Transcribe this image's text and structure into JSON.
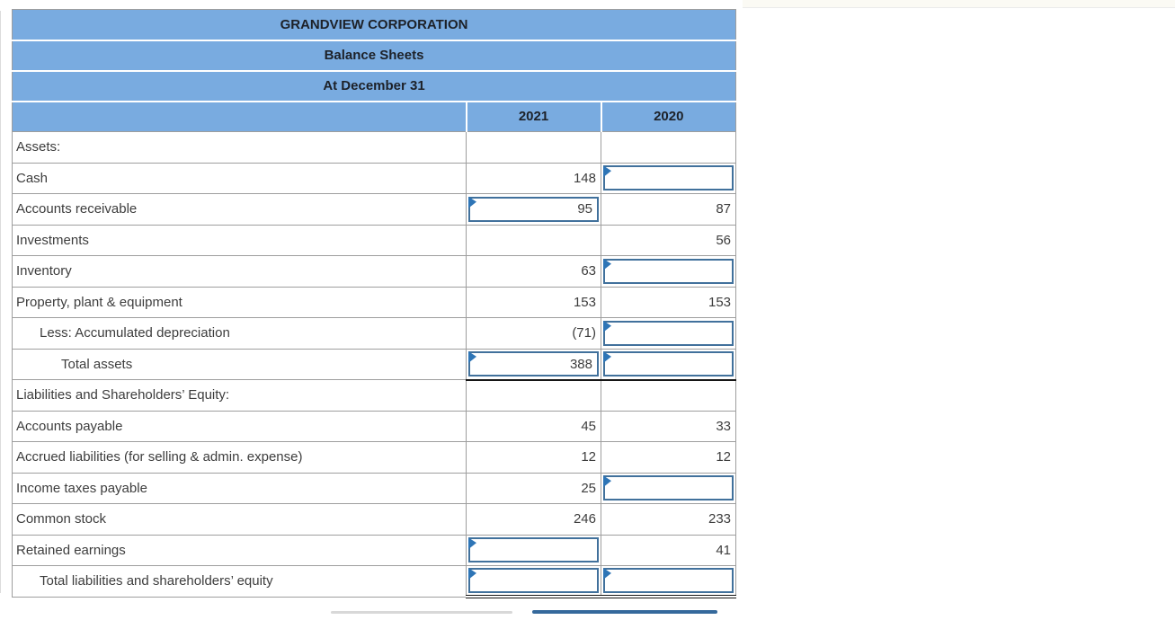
{
  "table": {
    "title": "GRANDVIEW CORPORATION",
    "subtitle": "Balance Sheets",
    "date_line": "At December 31",
    "columns": [
      "2021",
      "2020"
    ],
    "rows": [
      {
        "label": "Assets:",
        "indent": 0,
        "cells": [
          {
            "type": "static",
            "value": ""
          },
          {
            "type": "static",
            "value": ""
          }
        ]
      },
      {
        "label": "Cash",
        "indent": 0,
        "cells": [
          {
            "type": "static",
            "value": "148"
          },
          {
            "type": "input",
            "value": ""
          }
        ]
      },
      {
        "label": "Accounts receivable",
        "indent": 0,
        "cells": [
          {
            "type": "input",
            "value": "95"
          },
          {
            "type": "static",
            "value": "87"
          }
        ]
      },
      {
        "label": "Investments",
        "indent": 0,
        "cells": [
          {
            "type": "static",
            "value": ""
          },
          {
            "type": "static",
            "value": "56"
          }
        ]
      },
      {
        "label": "Inventory",
        "indent": 0,
        "cells": [
          {
            "type": "static",
            "value": "63"
          },
          {
            "type": "input",
            "value": ""
          }
        ]
      },
      {
        "label": "Property, plant & equipment",
        "indent": 0,
        "cells": [
          {
            "type": "static",
            "value": "153"
          },
          {
            "type": "static",
            "value": "153"
          }
        ]
      },
      {
        "label": "Less: Accumulated depreciation",
        "indent": 1,
        "cells": [
          {
            "type": "static",
            "value": "(71)"
          },
          {
            "type": "input",
            "value": ""
          }
        ]
      },
      {
        "label": "Total assets",
        "indent": 2,
        "underline": "single",
        "cells": [
          {
            "type": "input",
            "value": "388"
          },
          {
            "type": "input",
            "value": ""
          }
        ]
      },
      {
        "label": "Liabilities and Shareholders’ Equity:",
        "indent": 0,
        "cells": [
          {
            "type": "static",
            "value": ""
          },
          {
            "type": "static",
            "value": ""
          }
        ]
      },
      {
        "label": "Accounts payable",
        "indent": 0,
        "cells": [
          {
            "type": "static",
            "value": "45"
          },
          {
            "type": "static",
            "value": "33"
          }
        ]
      },
      {
        "label": "Accrued liabilities (for selling & admin. expense)",
        "indent": 0,
        "cells": [
          {
            "type": "static",
            "value": "12"
          },
          {
            "type": "static",
            "value": "12"
          }
        ]
      },
      {
        "label": "Income taxes payable",
        "indent": 0,
        "cells": [
          {
            "type": "static",
            "value": "25"
          },
          {
            "type": "input",
            "value": ""
          }
        ]
      },
      {
        "label": "Common stock",
        "indent": 0,
        "cells": [
          {
            "type": "static",
            "value": "246"
          },
          {
            "type": "static",
            "value": "233"
          }
        ]
      },
      {
        "label": "Retained earnings",
        "indent": 0,
        "cells": [
          {
            "type": "input",
            "value": ""
          },
          {
            "type": "static",
            "value": "41"
          }
        ]
      },
      {
        "label": "Total liabilities and shareholders’ equity",
        "indent": 1,
        "underline": "double",
        "cells": [
          {
            "type": "input",
            "value": ""
          },
          {
            "type": "input",
            "value": ""
          }
        ]
      }
    ]
  },
  "colors": {
    "header_bg": "#79abe0",
    "input_border": "#41719c",
    "flag": "#2e75b6",
    "grid": "#9e9e9e",
    "text": "#3d3d3d",
    "partial_button_left": "#d8d8d8",
    "partial_button_right": "#35699c"
  }
}
